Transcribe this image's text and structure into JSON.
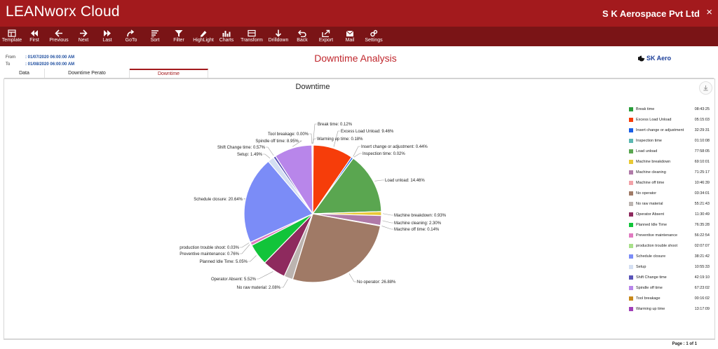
{
  "app": {
    "title": "LEANworx Cloud",
    "company": "S K Aerospace Pvt Ltd",
    "close": "×"
  },
  "toolbar": [
    {
      "label": "Template",
      "icon": "template-icon"
    },
    {
      "label": "First",
      "icon": "first-icon"
    },
    {
      "label": "Previous",
      "icon": "previous-icon"
    },
    {
      "label": "Next",
      "icon": "next-icon"
    },
    {
      "label": "Last",
      "icon": "last-icon"
    },
    {
      "label": "GoTo",
      "icon": "goto-icon"
    },
    {
      "label": "Sort",
      "icon": "sort-icon"
    },
    {
      "label": "Filter",
      "icon": "filter-icon"
    },
    {
      "label": "HighLight",
      "icon": "highlight-icon"
    },
    {
      "label": "Charts",
      "icon": "charts-icon"
    },
    {
      "label": "Transform",
      "icon": "transform-icon"
    },
    {
      "label": "Drilldown",
      "icon": "drilldown-icon"
    },
    {
      "label": "Back",
      "icon": "back-icon"
    },
    {
      "label": "Export",
      "icon": "export-icon"
    },
    {
      "label": "Mail",
      "icon": "mail-icon"
    },
    {
      "label": "Settings",
      "icon": "settings-icon"
    }
  ],
  "range": {
    "from_label": "From",
    "from_value": ": 01/07/2020 06:00:00 AM",
    "to_label": "To",
    "to_value": ": 01/08/2020 06:00:00 AM"
  },
  "page": {
    "heading": "Downtime Analysis",
    "logo_text": "SK Aero"
  },
  "tabs": [
    {
      "label": "Data",
      "active": false
    },
    {
      "label": "Downtime Perato",
      "active": false
    },
    {
      "label": "Downtime",
      "active": true
    }
  ],
  "pager": "Page : 1 of 1",
  "chart_data": {
    "type": "pie",
    "title": "Downtime",
    "slices": [
      {
        "name": "Break time",
        "value": 0.12,
        "label": "Break time: 0.12%",
        "time": "08:43:25",
        "color": "#2a9d3a"
      },
      {
        "name": "Excess Load Unload",
        "value": 9.46,
        "label": "Excess Load Unload: 9.46%",
        "time": "05:15:03",
        "color": "#f63d0a"
      },
      {
        "name": "Insert change or adjustment",
        "value": 0.44,
        "label": "Insert change or adjustment: 0.44%",
        "time": "32:29:31",
        "color": "#1a5fe6"
      },
      {
        "name": "Inspection time",
        "value": 0.02,
        "label": "Inspection time: 0.02%",
        "time": "01:10:08",
        "color": "#5cb8b2"
      },
      {
        "name": "Load unload",
        "value": 14.46,
        "label": "Load unload: 14.46%",
        "time": "77:58:05",
        "color": "#5aa650"
      },
      {
        "name": "Machine breakdown",
        "value": 0.93,
        "label": "Machine breakdown: 0.93%",
        "time": "69:10:01",
        "color": "#e9c934"
      },
      {
        "name": "Machine cleaning",
        "value": 2.3,
        "label": "Machine cleaning: 2.30%",
        "time": "71:25:17",
        "color": "#b07aa8"
      },
      {
        "name": "Machine off time",
        "value": 0.14,
        "label": "Machine off time: 0.14%",
        "time": "10:46:39",
        "color": "#f2a2a8"
      },
      {
        "name": "No operator",
        "value": 26.88,
        "label": "No operator: 26.88%",
        "time": "03:34:01",
        "color": "#a07a66"
      },
      {
        "name": "No raw material",
        "value": 2.08,
        "label": "No raw material: 2.08%",
        "time": "55:21:43",
        "color": "#bcb4b0"
      },
      {
        "name": "Operator Absent",
        "value": 5.52,
        "label": "Operator Absent: 5.52%",
        "time": "11:30:49",
        "color": "#8e2a5e"
      },
      {
        "name": "Planned Idle Time",
        "value": 5.05,
        "label": "Planned Idle Time: 5.05%",
        "time": "76:35:28",
        "color": "#12c43a"
      },
      {
        "name": "Preventive maintenance",
        "value": 0.76,
        "label": "Preventive maintenance: 0.76%",
        "time": "56:22:54",
        "color": "#e07ac0"
      },
      {
        "name": "production trouble shoot",
        "value": 0.03,
        "label": "production trouble shoot: 0.03%",
        "time": "02:07:07",
        "color": "#a8e08a"
      },
      {
        "name": "Schedule closure",
        "value": 20.64,
        "label": "Schedule closure: 20.64%",
        "time": "38:21:42",
        "color": "#7b8cf7"
      },
      {
        "name": "Setup",
        "value": 1.49,
        "label": "Setup: 1.49%",
        "time": "10:55:33",
        "color": "#d4dff2"
      },
      {
        "name": "Shift Change time",
        "value": 0.57,
        "label": "Shift Change time: 0.57%",
        "time": "42:19:10",
        "color": "#5a54b8"
      },
      {
        "name": "Spindle off time",
        "value": 8.95,
        "label": "Spindle off time: 8.95%",
        "time": "67:23:02",
        "color": "#b886ea"
      },
      {
        "name": "Tool breakage",
        "value": 0.0,
        "label": "Tool breakage: 0.00%",
        "time": "00:16:02",
        "color": "#c8891c"
      },
      {
        "name": "Warming up time",
        "value": 0.18,
        "label": "Warming up time: 0.18%",
        "time": "13:17:09",
        "color": "#a040b8"
      }
    ]
  }
}
